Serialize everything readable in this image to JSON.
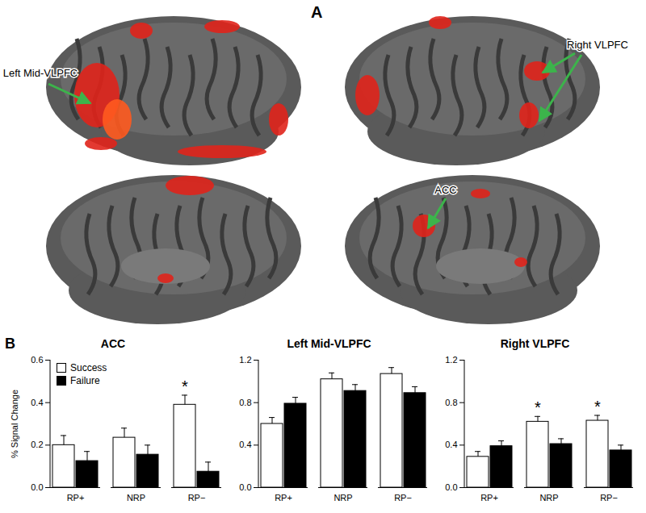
{
  "panel_a": {
    "label": "A",
    "annotations": [
      "Left Mid-VLPFC",
      "Right VLPFC",
      "ACC"
    ]
  },
  "panel_b": {
    "label": "B"
  },
  "chart_data": [
    {
      "type": "bar",
      "title": "ACC",
      "categories": [
        "RP+",
        "NRP",
        "RP−"
      ],
      "series": [
        {
          "name": "Success",
          "color": "#ffffff",
          "values": [
            0.2,
            0.235,
            0.39
          ],
          "errors": [
            0.045,
            0.045,
            0.045
          ]
        },
        {
          "name": "Failure",
          "color": "#000000",
          "values": [
            0.125,
            0.155,
            0.075
          ],
          "errors": [
            0.045,
            0.045,
            0.045
          ]
        }
      ],
      "ylim": [
        0,
        0.6
      ],
      "yticks": [
        {
          "value": 0,
          "label": "0.0"
        },
        0.2,
        0.4,
        0.6
      ],
      "ylabel": "% Signal Change",
      "legend": "top-left",
      "annotations": [
        {
          "category": "RP−",
          "series": "Success",
          "text": "*"
        }
      ]
    },
    {
      "type": "bar",
      "title": "Left Mid-VLPFC",
      "categories": [
        "RP+",
        "NRP",
        "RP−"
      ],
      "series": [
        {
          "name": "Success",
          "color": "#ffffff",
          "values": [
            0.6,
            1.02,
            1.07
          ],
          "errors": [
            0.06,
            0.06,
            0.06
          ]
        },
        {
          "name": "Failure",
          "color": "#000000",
          "values": [
            0.79,
            0.91,
            0.89
          ],
          "errors": [
            0.06,
            0.06,
            0.06
          ]
        }
      ],
      "ylim": [
        0,
        1.2
      ],
      "yticks": [
        {
          "value": 0,
          "label": "0.0"
        },
        0.4,
        0.8,
        1.2
      ],
      "annotations": []
    },
    {
      "type": "bar",
      "title": "Right VLPFC",
      "categories": [
        "RP+",
        "NRP",
        "RP−"
      ],
      "series": [
        {
          "name": "Success",
          "color": "#ffffff",
          "values": [
            0.29,
            0.62,
            0.63
          ],
          "errors": [
            0.05,
            0.05,
            0.05
          ]
        },
        {
          "name": "Failure",
          "color": "#000000",
          "values": [
            0.39,
            0.41,
            0.35
          ],
          "errors": [
            0.05,
            0.05,
            0.05
          ]
        }
      ],
      "ylim": [
        0,
        1.2
      ],
      "yticks": [
        {
          "value": 0,
          "label": "0.0"
        },
        0.4,
        0.8,
        1.2
      ],
      "annotations": [
        {
          "category": "NRP",
          "series": "Success",
          "text": "*"
        },
        {
          "category": "RP−",
          "series": "Success",
          "text": "*"
        }
      ]
    }
  ]
}
